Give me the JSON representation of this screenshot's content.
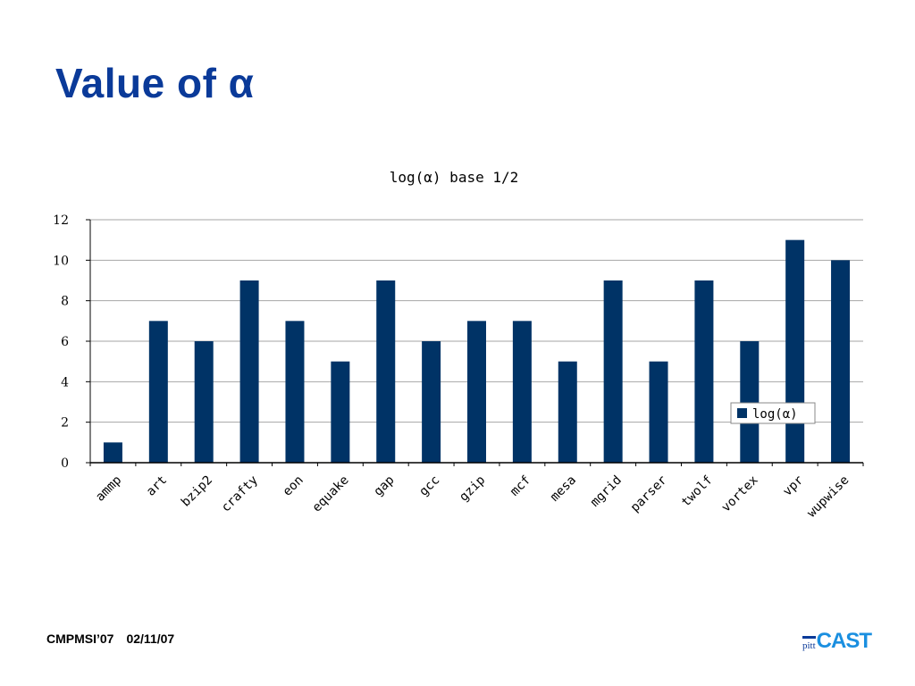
{
  "slide": {
    "title": "Value of α",
    "footer_conf": "CMPMSI’07",
    "footer_date": "02/11/07",
    "logo_small": "pitt",
    "logo_large": "CAST"
  },
  "colors": {
    "title": "#0a3a99",
    "bar": "#003366",
    "logo_blue": "#1a8fe0"
  },
  "chart_data": {
    "type": "bar",
    "title": "log(α) base 1/2",
    "categories": [
      "ammp",
      "art",
      "bzip2",
      "crafty",
      "eon",
      "equake",
      "gap",
      "gcc",
      "gzip",
      "mcf",
      "mesa",
      "mgrid",
      "parser",
      "twolf",
      "vortex",
      "vpr",
      "wupwise"
    ],
    "series": [
      {
        "name": "log(α)",
        "values": [
          1,
          7,
          6,
          9,
          7,
          5,
          9,
          6,
          7,
          7,
          5,
          9,
          5,
          9,
          6,
          11,
          10
        ]
      }
    ],
    "ylim": [
      0,
      12
    ],
    "yticks": [
      0,
      2,
      4,
      6,
      8,
      10,
      12
    ],
    "grid": true,
    "legend": "right"
  }
}
